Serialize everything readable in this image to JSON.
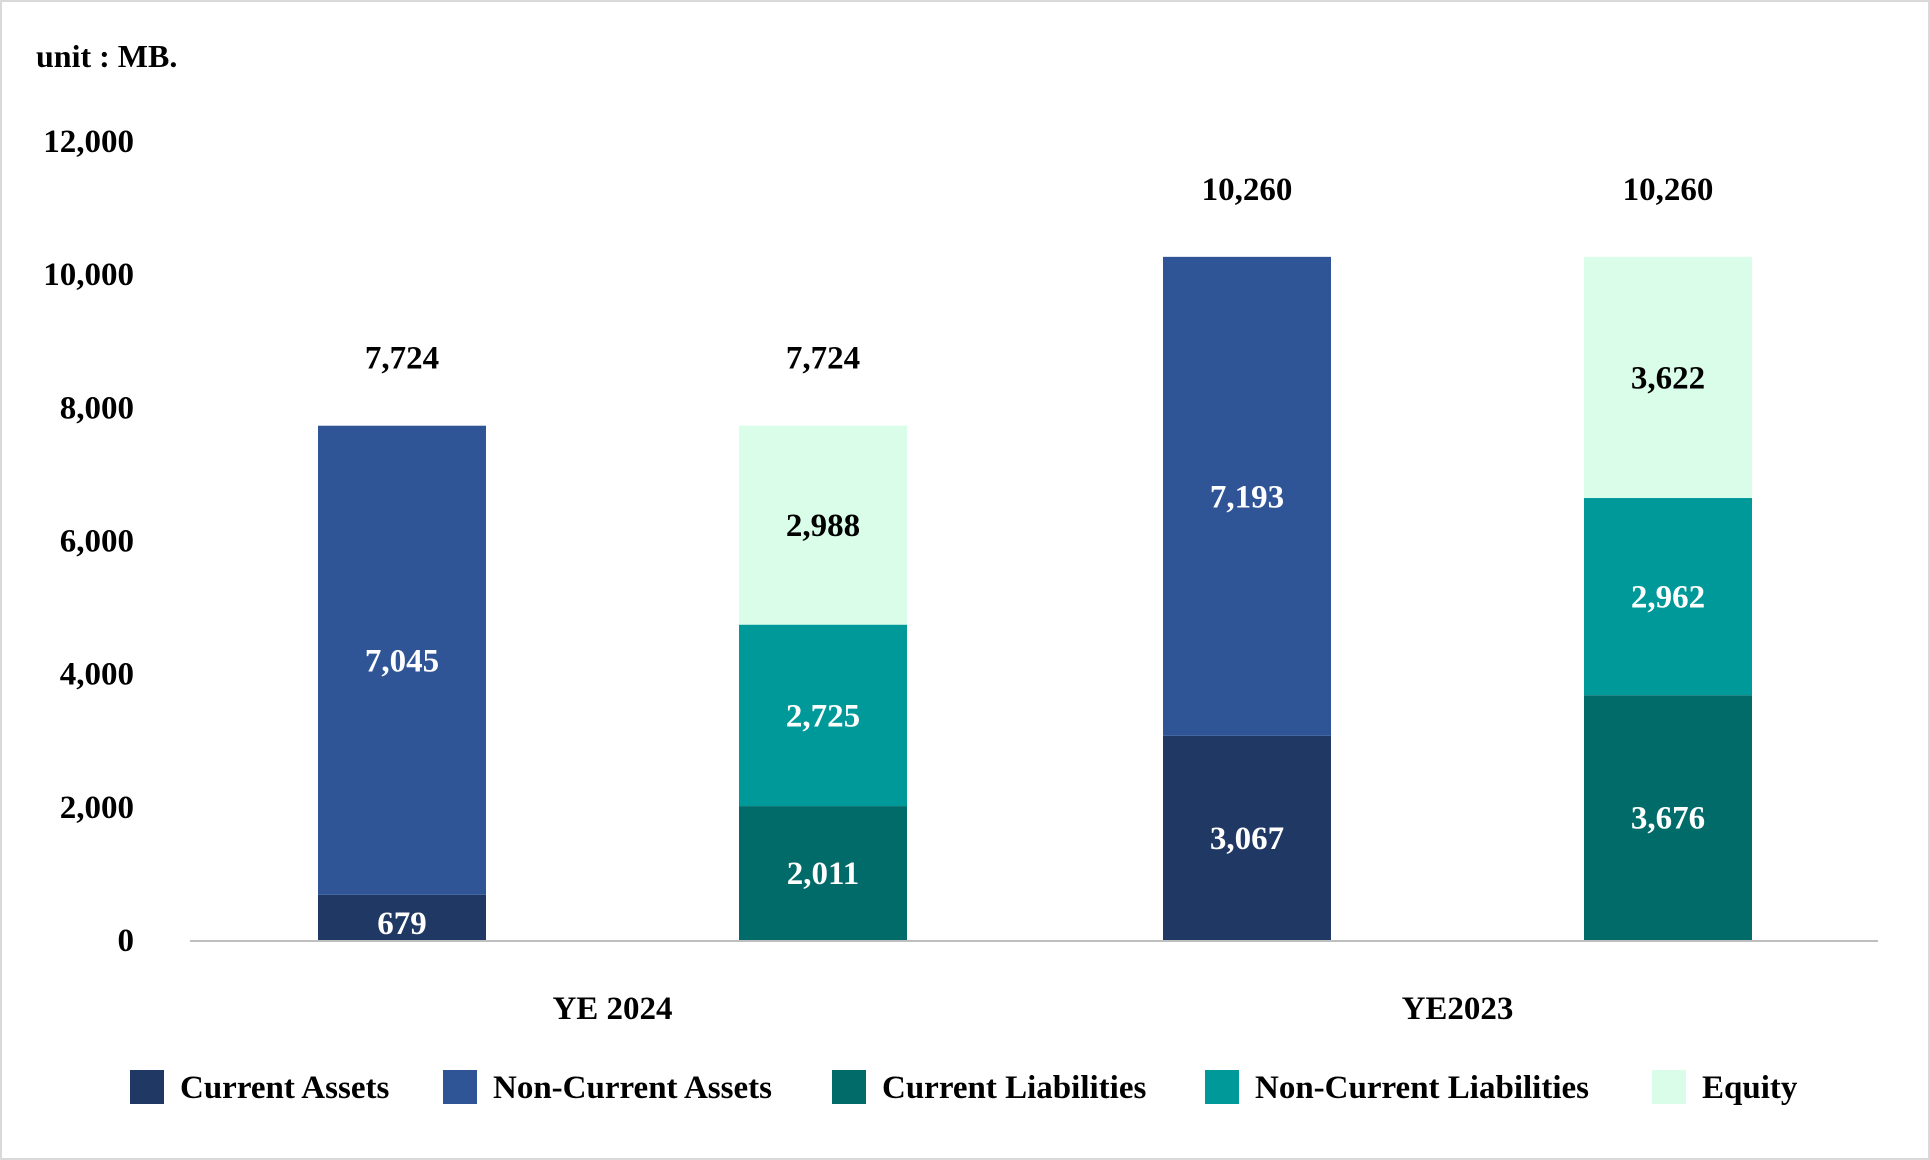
{
  "unit_label": "unit : MB.",
  "chart_data": {
    "type": "bar",
    "stacked": true,
    "y_ticks": [
      0,
      2000,
      4000,
      6000,
      8000,
      10000,
      12000
    ],
    "ylim": [
      0,
      12000
    ],
    "grid": false,
    "legend_position": "bottom",
    "groups": [
      {
        "label": "YE 2024",
        "bars": [
          {
            "total": 7724,
            "segments": [
              {
                "series": "Current Assets",
                "value": 679
              },
              {
                "series": "Non-Current Assets",
                "value": 7045
              }
            ]
          },
          {
            "total": 7724,
            "segments": [
              {
                "series": "Current Liabilities",
                "value": 2011
              },
              {
                "series": "Non-Current Liabilities",
                "value": 2725
              },
              {
                "series": "Equity",
                "value": 2988
              }
            ]
          }
        ]
      },
      {
        "label": "YE2023",
        "bars": [
          {
            "total": 10260,
            "segments": [
              {
                "series": "Current Assets",
                "value": 3067
              },
              {
                "series": "Non-Current Assets",
                "value": 7193
              }
            ]
          },
          {
            "total": 10260,
            "segments": [
              {
                "series": "Current Liabilities",
                "value": 3676
              },
              {
                "series": "Non-Current Liabilities",
                "value": 2962
              },
              {
                "series": "Equity",
                "value": 3622
              }
            ]
          }
        ]
      }
    ],
    "series": [
      {
        "name": "Current Assets",
        "color": "#203864",
        "label_color": "#ffffff"
      },
      {
        "name": "Non-Current Assets",
        "color": "#2f5597",
        "label_color": "#ffffff"
      },
      {
        "name": "Current Liabilities",
        "color": "#006b68",
        "label_color": "#ffffff"
      },
      {
        "name": "Non-Current Liabilities",
        "color": "#00999a",
        "label_color": "#ffffff"
      },
      {
        "name": "Equity",
        "color": "#dafde9",
        "label_color": "#000000"
      }
    ]
  }
}
